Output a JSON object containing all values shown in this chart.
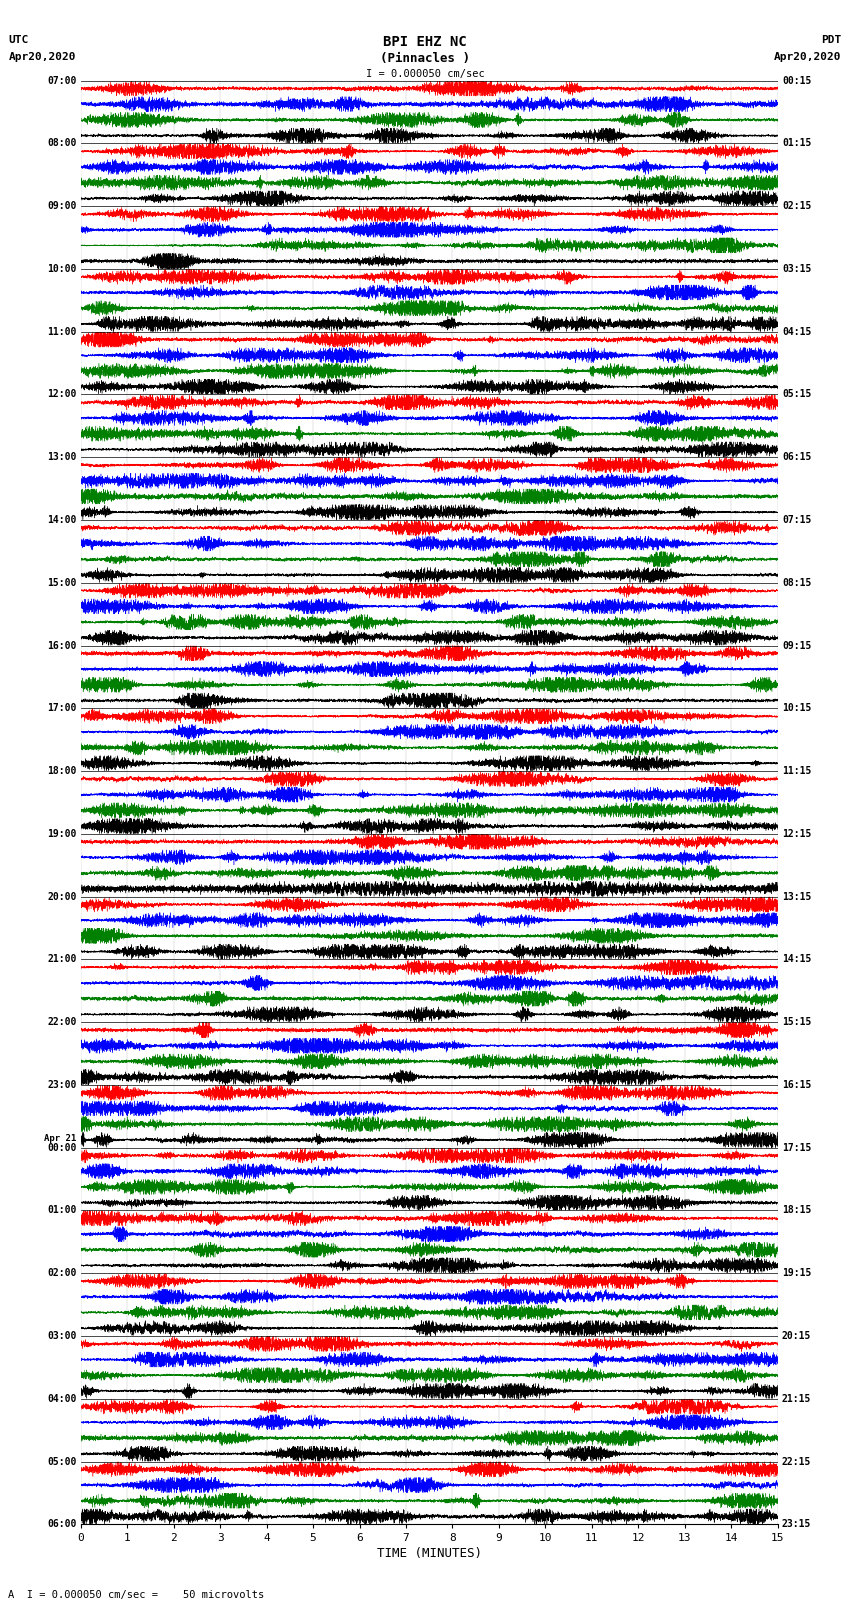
{
  "title_line1": "BPI EHZ NC",
  "title_line2": "(Pinnacles )",
  "scale_label": "I = 0.000050 cm/sec",
  "footer_label": "A  I = 0.000050 cm/sec =    50 microvolts",
  "xlabel": "TIME (MINUTES)",
  "left_header_line1": "UTC",
  "left_header_line2": "Apr20,2020",
  "right_header_line1": "PDT",
  "right_header_line2": "Apr20,2020",
  "left_times": [
    "07:00",
    "08:00",
    "09:00",
    "10:00",
    "11:00",
    "12:00",
    "13:00",
    "14:00",
    "15:00",
    "16:00",
    "17:00",
    "18:00",
    "19:00",
    "20:00",
    "21:00",
    "22:00",
    "23:00",
    "Apr 21\n00:00",
    "01:00",
    "02:00",
    "03:00",
    "04:00",
    "05:00",
    "06:00"
  ],
  "right_times": [
    "00:15",
    "01:15",
    "02:15",
    "03:15",
    "04:15",
    "05:15",
    "06:15",
    "07:15",
    "08:15",
    "09:15",
    "10:15",
    "11:15",
    "12:15",
    "13:15",
    "14:15",
    "15:15",
    "16:15",
    "17:15",
    "18:15",
    "19:15",
    "20:15",
    "21:15",
    "22:15",
    "23:15"
  ],
  "colors": [
    "red",
    "blue",
    "green",
    "black"
  ],
  "bg_color": "white",
  "fig_width": 8.5,
  "fig_height": 16.13,
  "dpi": 100,
  "num_hours": 23,
  "sub_rows_per_hour": 4,
  "n_samples": 9000,
  "amplitude": 0.42,
  "seed_base": 1234
}
